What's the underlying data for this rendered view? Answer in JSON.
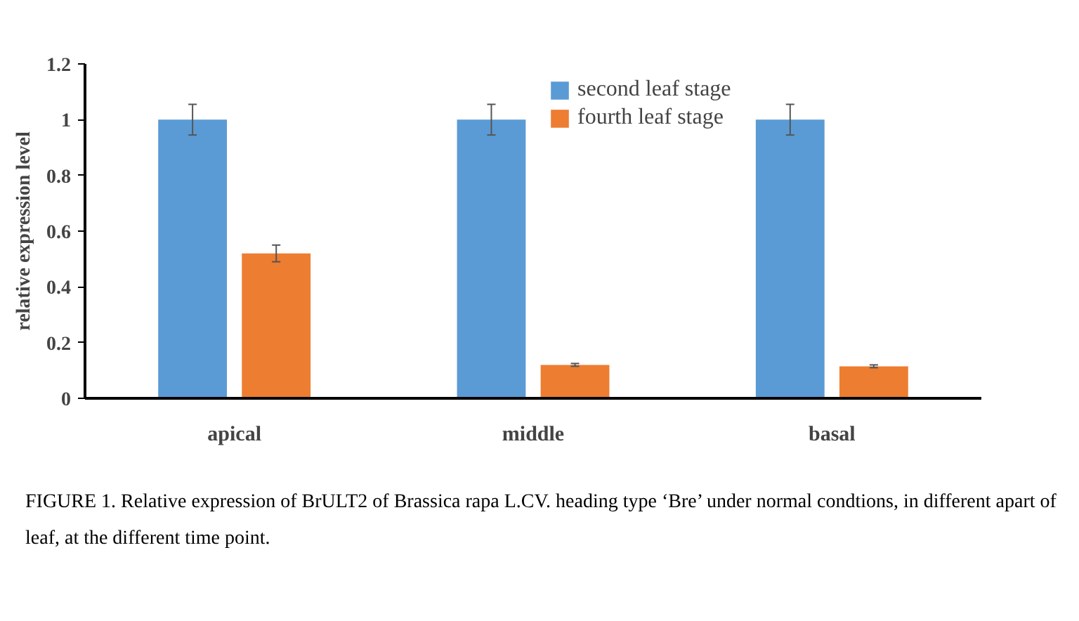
{
  "chart_data": {
    "type": "bar",
    "ylabel": "relative expression level",
    "categories": [
      "apical",
      "middle",
      "basal"
    ],
    "series": [
      {
        "name": "second leaf stage",
        "color": "#5b9bd5",
        "values": [
          1,
          1,
          1
        ],
        "errors": [
          0.055,
          0.055,
          0.055
        ]
      },
      {
        "name": "fourth leaf stage",
        "color": "#ed7d31",
        "values": [
          0.52,
          0.12,
          0.115
        ],
        "errors": [
          0.03,
          0.005,
          0.005
        ]
      }
    ],
    "ylim": [
      0,
      1.2
    ],
    "yticks": [
      0,
      0.2,
      0.4,
      0.6,
      0.8,
      1,
      1.2
    ],
    "grid": false,
    "legend": "top right",
    "annotations": [
      "FIGURE 1. Relative expression of BrULT2 of Brassica rapa L.CV. heading type ‘Bre’ under normal condtions, in different apart of leaf, at the different time point."
    ]
  }
}
